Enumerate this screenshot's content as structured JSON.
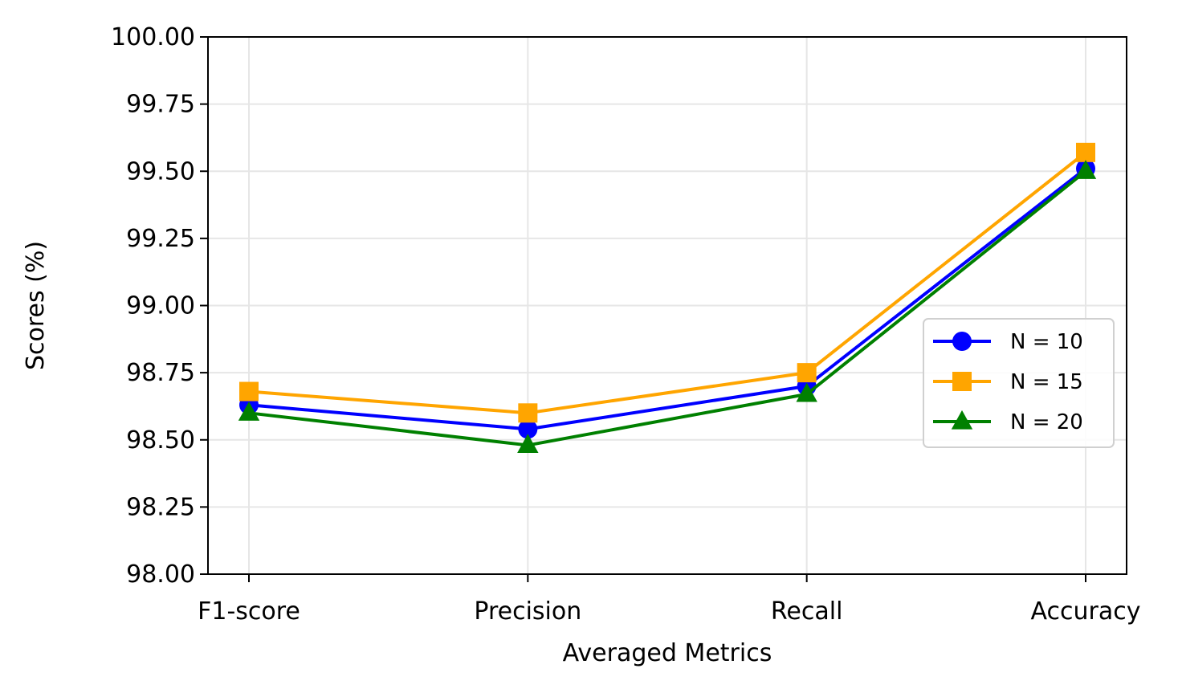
{
  "chart_data": {
    "type": "line",
    "title": "",
    "xlabel": "Averaged Metrics",
    "ylabel": "Scores (%)",
    "categories": [
      "F1-score",
      "Precision",
      "Recall",
      "Accuracy"
    ],
    "ylim": [
      98.0,
      100.0
    ],
    "yticks": [
      "98.00",
      "98.25",
      "98.50",
      "98.75",
      "99.00",
      "99.25",
      "99.50",
      "99.75",
      "100.00"
    ],
    "grid": true,
    "legend_position": "center-right",
    "series": [
      {
        "name": "N = 10",
        "values": [
          98.63,
          98.54,
          98.7,
          99.51
        ],
        "color": "#0000ff",
        "marker": "circle"
      },
      {
        "name": "N = 15",
        "values": [
          98.68,
          98.6,
          98.75,
          99.57
        ],
        "color": "#ffa500",
        "marker": "square"
      },
      {
        "name": "N = 20",
        "values": [
          98.6,
          98.48,
          98.67,
          99.5
        ],
        "color": "#008000",
        "marker": "triangle"
      }
    ]
  }
}
